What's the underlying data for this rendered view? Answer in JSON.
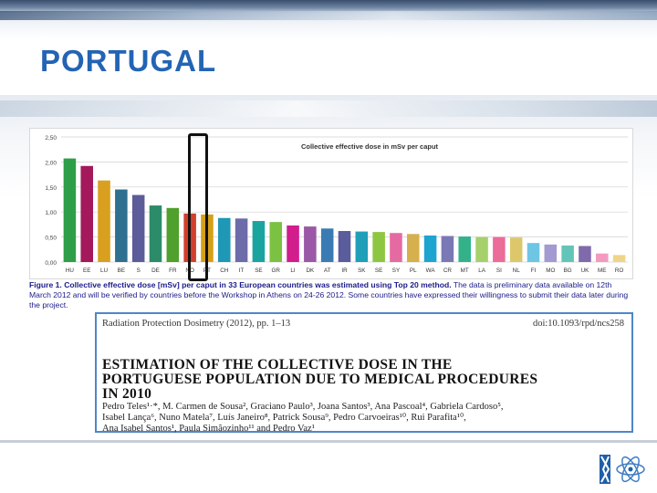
{
  "slide": {
    "title": "PORTUGAL"
  },
  "caption": {
    "lead": "Figure 1. Collective effective dose [mSv] per caput in 33 European countries was estimated using Top 20 method.",
    "rest": " The data is preliminary data available on 12th March 2012 and will be verified by countries before the Workshop in Athens on 24-26 2012. Some countries have expressed their willingness to submit their data later during the project."
  },
  "paper": {
    "journal": "Radiation Protection Dosimetry (2012), pp. 1–13",
    "doi": "doi:10.1093/rpd/ncs258",
    "title_lines": [
      "ESTIMATION OF THE COLLECTIVE DOSE IN THE",
      "PORTUGUESE POPULATION DUE TO MEDICAL PROCEDURES",
      "IN 2010"
    ],
    "authors_lines": [
      "Pedro Teles¹·*, M. Carmen de Sousa², Graciano Paulo³, Joana Santos³, Ana Pascoal⁴, Gabriela Cardoso⁵,",
      "Isabel Lança⁶, Nuno Matela⁷, Luís Janeiro⁸, Patrick Sousa⁹, Pedro Carvoeiras¹⁰, Rui Parafita¹⁰,",
      "Ana Isabel Santos¹, Paula Simãozinho¹¹ and Pedro Vaz¹"
    ]
  },
  "chart_data": {
    "type": "bar",
    "title": "Collective effective dose in mSv per caput",
    "categories": [
      "HU",
      "EE",
      "LU",
      "BE",
      "S",
      "DE",
      "FR",
      "NO",
      "PT",
      "CH",
      "IT",
      "SE",
      "GR",
      "LI",
      "DK",
      "AT",
      "IR",
      "SK",
      "SE",
      "SY",
      "PL",
      "WA",
      "CR",
      "MT",
      "LA",
      "SI",
      "NL",
      "FI",
      "MO",
      "BG",
      "UK",
      "ME",
      "RO"
    ],
    "values": [
      2.07,
      1.92,
      1.63,
      1.45,
      1.34,
      1.13,
      1.08,
      0.97,
      0.95,
      0.88,
      0.87,
      0.82,
      0.8,
      0.73,
      0.71,
      0.67,
      0.62,
      0.61,
      0.6,
      0.58,
      0.56,
      0.53,
      0.52,
      0.51,
      0.5,
      0.5,
      0.49,
      0.38,
      0.35,
      0.33,
      0.32,
      0.17,
      0.14
    ],
    "colors": [
      "#2e9e48",
      "#a3195b",
      "#d9a020",
      "#2f6f8f",
      "#5b5c99",
      "#2c8c6a",
      "#4fa02c",
      "#d23f2c",
      "#d4a017",
      "#1f98b5",
      "#6c6caa",
      "#1aa4a0",
      "#7cc242",
      "#d21d8c",
      "#9a58a6",
      "#3b7bb4",
      "#5a5c9c",
      "#1fa0b8",
      "#8ec641",
      "#e56aa2",
      "#d6b04c",
      "#1ea5cf",
      "#7a79b5",
      "#33b28a",
      "#a6d16a",
      "#ec6c99",
      "#dcc86a",
      "#6ec6e4",
      "#a29ad0",
      "#63c5b8",
      "#7f6aab",
      "#f39bbf",
      "#efd58a"
    ],
    "yticks": [
      "2,50",
      "2,00",
      "1,50",
      "1,00",
      "0,50",
      "0,00"
    ],
    "ylim": [
      0,
      2.5
    ],
    "legend": "none",
    "grid": true
  }
}
